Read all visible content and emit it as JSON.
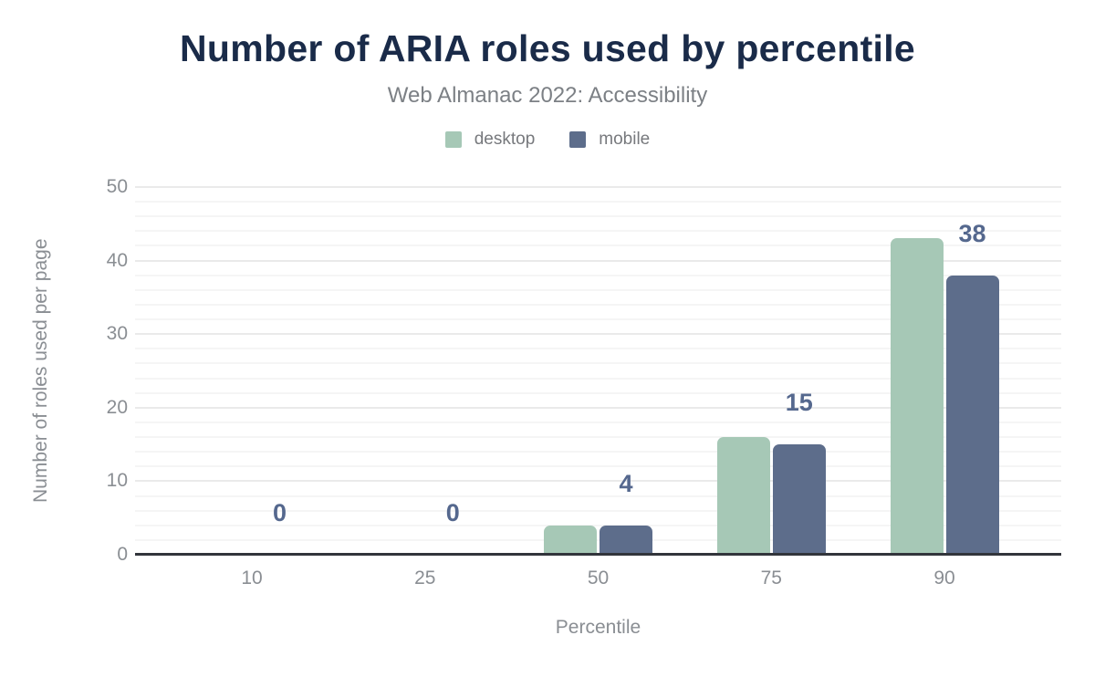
{
  "chart_data": {
    "type": "bar",
    "title": "Number of ARIA roles used by percentile",
    "subtitle": "Web Almanac 2022: Accessibility",
    "xlabel": "Percentile",
    "ylabel": "Number of roles used per page",
    "categories": [
      "10",
      "25",
      "50",
      "75",
      "90"
    ],
    "series": [
      {
        "name": "desktop",
        "color": "#a6c8b6",
        "values": [
          0,
          0,
          4,
          16,
          43
        ]
      },
      {
        "name": "mobile",
        "color": "#5d6d8b",
        "values": [
          0,
          0,
          4,
          15,
          38
        ]
      }
    ],
    "data_labels": {
      "series": "mobile",
      "values": [
        "0",
        "0",
        "4",
        "15",
        "38"
      ],
      "color": "#55688e"
    },
    "ylim": [
      0,
      50
    ],
    "yticks": [
      0,
      10,
      20,
      30,
      40,
      50
    ],
    "grid": {
      "minor_step": 2,
      "major_step": 10,
      "minor_color": "#f5f5f5",
      "major_color": "#eaeaea"
    },
    "legend_position": "top",
    "colors": {
      "title": "#1a2b49",
      "subtitle": "#7c8085",
      "tick_label": "#8a8e93",
      "legend_label": "#77797d",
      "axis_line": "#32353b"
    }
  }
}
